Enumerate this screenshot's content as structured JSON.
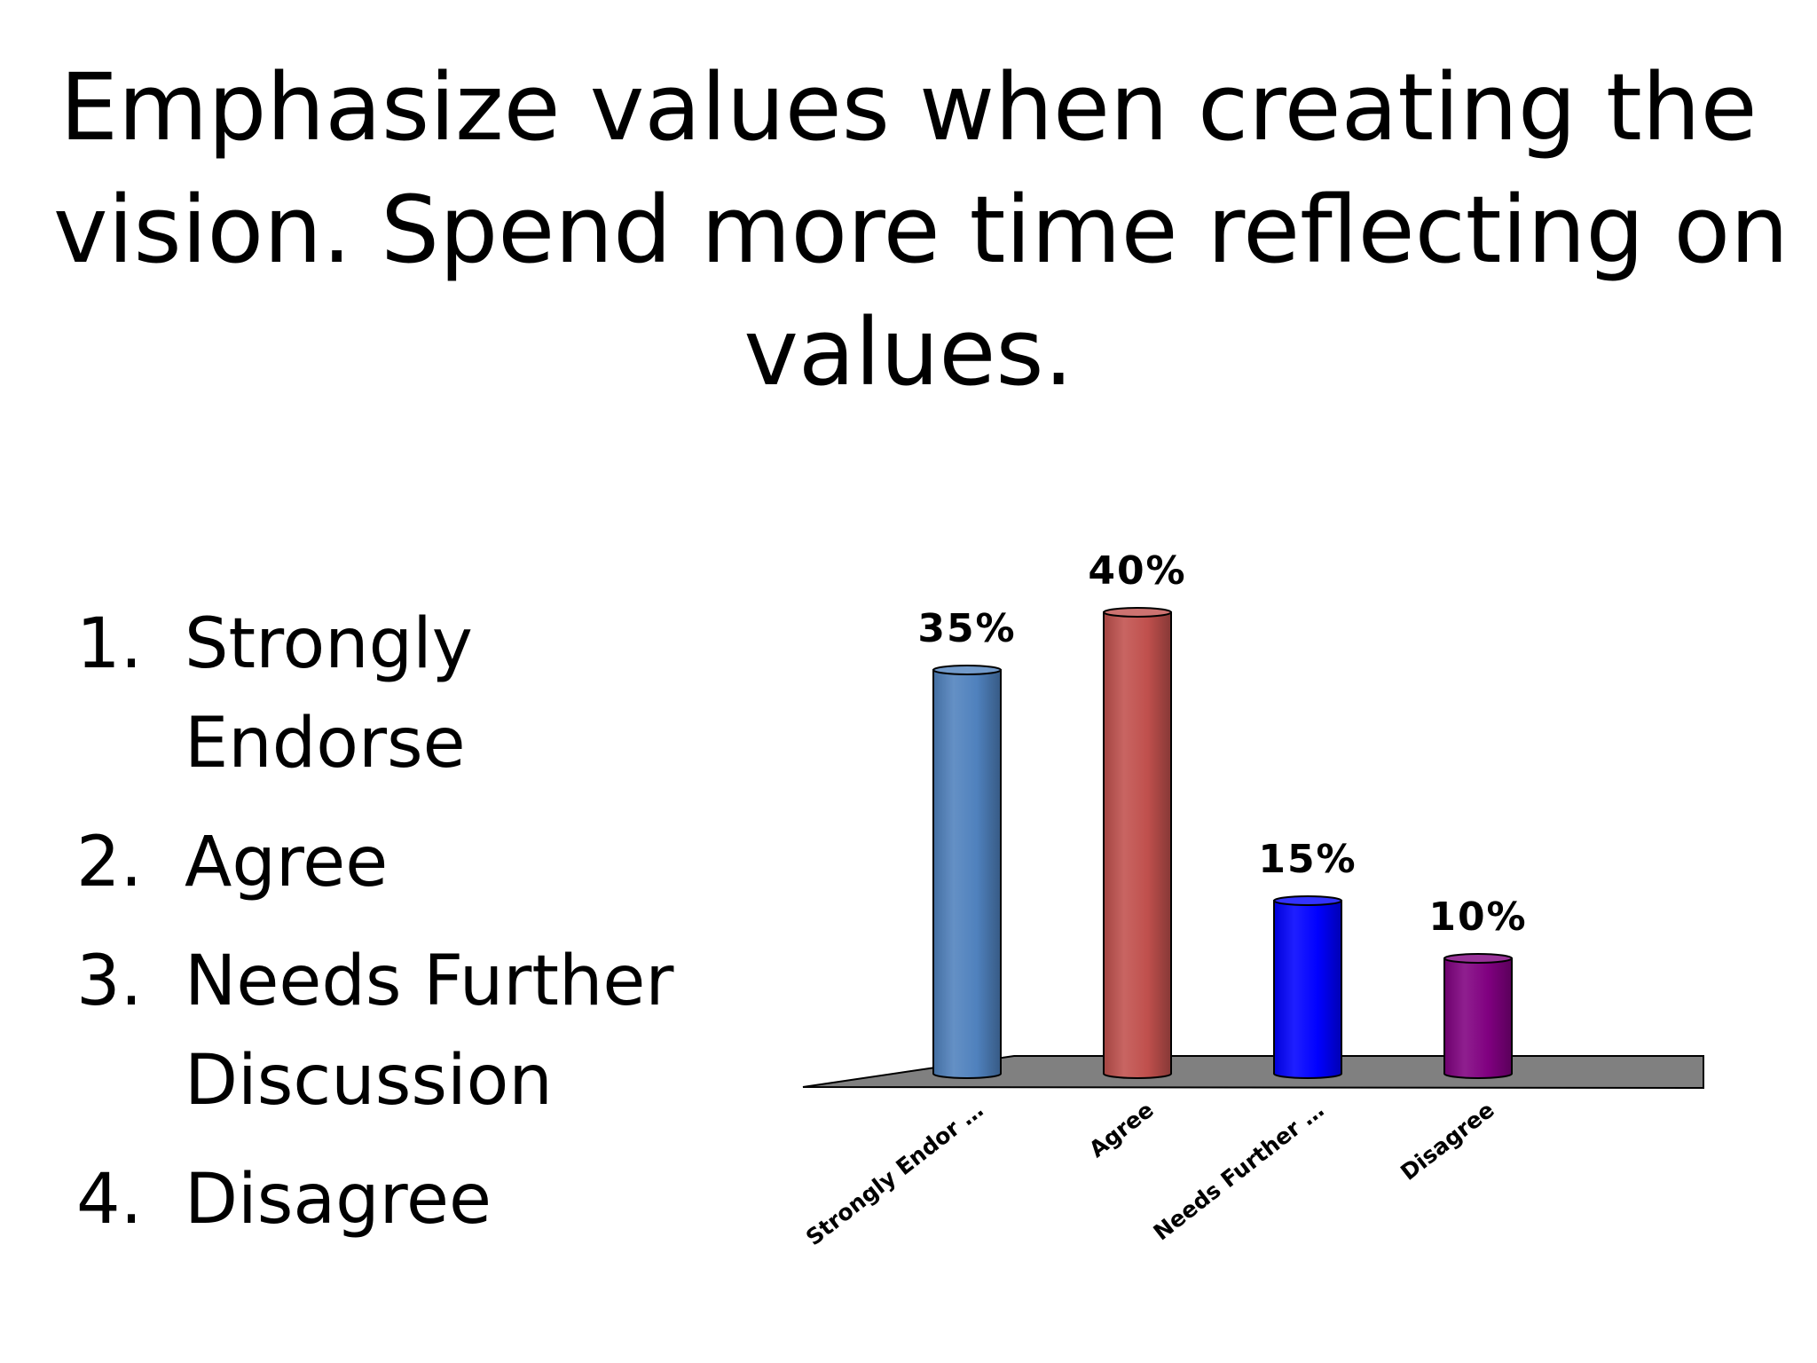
{
  "slide": {
    "title_lines": [
      "Emphasize values when creating the",
      "vision.  Spend more time reflecting on",
      "values."
    ],
    "options": [
      {
        "number": "1.",
        "label": "Strongly Endorse"
      },
      {
        "number": "2.",
        "label": "Agree"
      },
      {
        "number": "3.",
        "label": "Needs Further Discussion"
      },
      {
        "number": "4.",
        "label": "Disagree"
      }
    ]
  },
  "chart_data": {
    "type": "bar",
    "style": "3d-cylinder",
    "categories": [
      "Strongly Endor …",
      "Agree",
      "Needs Further …",
      "Disagree"
    ],
    "values": [
      35,
      40,
      15,
      10
    ],
    "value_labels": [
      "35%",
      "40%",
      "15%",
      "10%"
    ],
    "colors": [
      "#4f81bd",
      "#c0504d",
      "#0000ff",
      "#800080"
    ],
    "floor_color": "#808080",
    "ylim": [
      0,
      40
    ],
    "grid": false,
    "legend": "none"
  }
}
